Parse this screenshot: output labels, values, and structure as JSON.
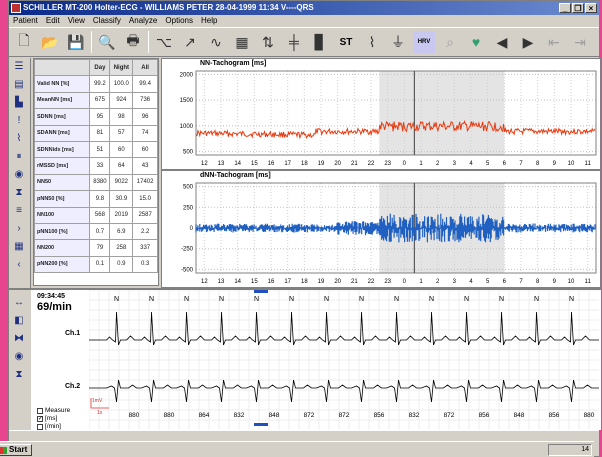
{
  "window": {
    "title": "SCHILLER MT-200 Holter-ECG - WILLIAMS PETER 28-04-1999 11:34 V----QRS",
    "min": "_",
    "restore": "❐",
    "close": "×"
  },
  "menu": [
    "Patient",
    "Edit",
    "View",
    "Classify",
    "Analyze",
    "Options",
    "Help"
  ],
  "toolbar": {
    "st_label": "ST",
    "hrv_label": "HRV"
  },
  "stats": {
    "headers": [
      "",
      "Day",
      "Night",
      "All"
    ],
    "rows": [
      [
        "Valid NN [%]",
        "99.2",
        "100.0",
        "99.4"
      ],
      [
        "MeanNN [ms]",
        "675",
        "924",
        "736"
      ],
      [
        "SDNN [ms]",
        "95",
        "98",
        "96"
      ],
      [
        "SDANN [ms]",
        "81",
        "57",
        "74"
      ],
      [
        "SDNNidx [ms]",
        "51",
        "60",
        "60"
      ],
      [
        "rMSSD [ms]",
        "33",
        "64",
        "43"
      ],
      [
        "NN50",
        "8380",
        "9022",
        "17402"
      ],
      [
        "pNN50 [%]",
        "9.8",
        "30.9",
        "15.0"
      ],
      [
        "NN100",
        "568",
        "2019",
        "2587"
      ],
      [
        "pNN100 [%]",
        "0.7",
        "6.9",
        "2.2"
      ],
      [
        "NN200",
        "79",
        "258",
        "337"
      ],
      [
        "pNN200 [%]",
        "0.1",
        "0.9",
        "0.3"
      ]
    ]
  },
  "nn_chart": {
    "title": "NN-Tachogram [ms]",
    "y_ticks": [
      "2000",
      "1500",
      "1000",
      "500"
    ],
    "x_ticks": [
      "12",
      "13",
      "14",
      "15",
      "16",
      "17",
      "18",
      "19",
      "20",
      "21",
      "22",
      "23",
      "0",
      "1",
      "2",
      "3",
      "4",
      "5",
      "6",
      "7",
      "8",
      "9",
      "10",
      "11"
    ],
    "color": "#e83a10"
  },
  "dnn_chart": {
    "title": "dNN-Tachogram [ms]",
    "y_ticks": [
      "500",
      "250",
      "0",
      "-250",
      "-500"
    ],
    "x_ticks": [
      "12",
      "13",
      "14",
      "15",
      "16",
      "17",
      "18",
      "19",
      "20",
      "21",
      "22",
      "23",
      "0",
      "1",
      "2",
      "3",
      "4",
      "5",
      "6",
      "7",
      "8",
      "9",
      "10",
      "11"
    ],
    "color": "#2060c0"
  },
  "ecg": {
    "time": "09:34:45",
    "hr": "69/min",
    "ch1": "Ch.1",
    "ch2": "Ch.2",
    "beat_label": "N",
    "rr": [
      "880",
      "880",
      "864",
      "832",
      "848",
      "872",
      "872",
      "856",
      "832",
      "872",
      "856",
      "848",
      "856",
      "880"
    ],
    "measure": "Measure",
    "opt_ms": "[ms]",
    "opt_min": "[/min]",
    "scale_mv": "1mV",
    "scale_s": "1s"
  },
  "taskbar": {
    "start": "Start",
    "clock": "14"
  }
}
